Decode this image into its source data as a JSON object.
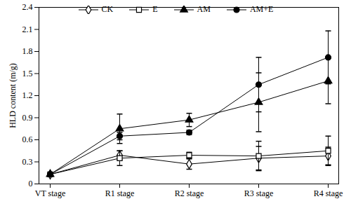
{
  "chart_data": {
    "type": "line",
    "y_label": "HLD content (m/g)",
    "categories": [
      "VT stage",
      "R1 stage",
      "R2 stage",
      "R3 stage",
      "R4 stage"
    ],
    "ylim": [
      0,
      2.4
    ],
    "yticks": [
      0,
      0.3,
      0.6,
      0.9,
      1.2,
      1.5,
      1.8,
      2.1,
      2.4
    ],
    "grid": false,
    "legend": "top",
    "series": [
      {
        "name": "CK",
        "color": "#000000",
        "marker": "diamond-open",
        "values": [
          0.13,
          0.39,
          0.27,
          0.35,
          0.38
        ],
        "errors": [
          0.0,
          0.06,
          0.07,
          0.16,
          0.12
        ]
      },
      {
        "name": "E",
        "color": "#000000",
        "marker": "square-open",
        "values": [
          0.13,
          0.35,
          0.39,
          0.38,
          0.45
        ],
        "errors": [
          0.0,
          0.1,
          0.04,
          0.2,
          0.2
        ]
      },
      {
        "name": "AM",
        "color": "#000000",
        "marker": "triangle",
        "values": [
          0.13,
          0.75,
          0.87,
          1.11,
          1.4
        ],
        "errors": [
          0.0,
          0.2,
          0.09,
          0.4,
          0.31
        ]
      },
      {
        "name": "AM+E",
        "color": "#000000",
        "marker": "circle",
        "values": [
          0.13,
          0.65,
          0.7,
          1.35,
          1.72
        ],
        "errors": [
          0.0,
          0.05,
          0.03,
          0.37,
          0.36
        ]
      }
    ]
  }
}
